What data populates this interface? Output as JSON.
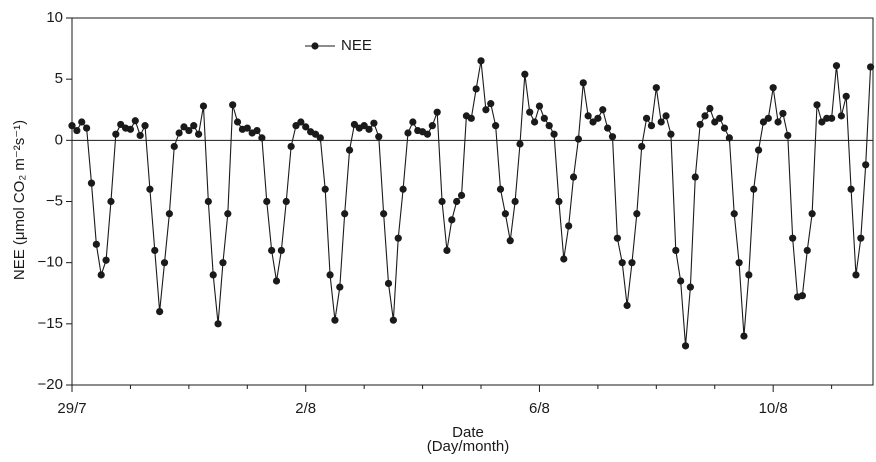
{
  "chart_data": {
    "type": "line",
    "x_label": "Date",
    "x_sublabel": "(Day/month)",
    "y_label": "NEE (μmol CO₂ m⁻²s⁻¹)",
    "x": [
      0,
      2,
      4,
      6,
      8,
      10,
      12,
      14,
      16,
      18,
      20,
      22,
      24,
      26,
      28,
      30,
      32,
      34,
      36,
      38,
      40,
      42,
      44,
      46,
      48,
      50,
      52,
      54,
      56,
      58,
      60,
      62,
      64,
      66,
      68,
      70,
      72,
      74,
      76,
      78,
      80,
      82,
      84,
      86,
      88,
      90,
      92,
      94,
      96,
      98,
      100,
      102,
      104,
      106,
      108,
      110,
      112,
      114,
      116,
      118,
      120,
      122,
      124,
      126,
      128,
      130,
      132,
      134,
      136,
      138,
      140,
      142,
      144,
      146,
      148,
      150,
      152,
      154,
      156,
      158,
      160,
      162,
      164,
      166,
      168,
      170,
      172,
      174,
      176,
      178,
      180,
      182,
      184,
      186,
      188,
      190,
      192,
      194,
      196,
      198,
      200,
      202,
      204,
      206,
      208,
      210,
      212,
      214,
      216,
      218,
      220,
      222,
      224,
      226,
      228,
      230,
      232,
      234,
      236,
      238,
      240,
      242,
      244,
      246,
      248,
      250,
      252,
      254,
      256,
      258,
      260,
      262,
      264,
      266,
      268,
      270,
      272,
      274,
      276,
      278,
      280,
      282,
      284,
      286,
      288,
      290,
      292,
      294,
      296,
      298,
      300,
      302,
      304,
      306,
      308,
      310,
      312,
      314,
      316,
      318,
      320,
      322,
      324,
      326,
      328
    ],
    "series": [
      {
        "name": "NEE",
        "color": "#1a1a1a",
        "values": [
          1.2,
          0.8,
          1.5,
          1.0,
          -3.5,
          -8.5,
          -11,
          -9.8,
          -5,
          0.5,
          1.3,
          1.0,
          0.9,
          1.6,
          0.4,
          1.2,
          -4,
          -9,
          -14,
          -10,
          -6,
          -0.5,
          0.6,
          1.1,
          0.8,
          1.2,
          0.5,
          2.8,
          -5,
          -11,
          -15,
          -10,
          -6,
          2.9,
          1.5,
          0.9,
          1.0,
          0.6,
          0.8,
          0.2,
          -5,
          -9,
          -11.5,
          -9,
          -5,
          -0.5,
          1.2,
          1.5,
          1.1,
          0.7,
          0.5,
          0.2,
          -4,
          -11,
          -14.7,
          -12,
          -6,
          -0.8,
          1.3,
          1.0,
          1.2,
          0.9,
          1.4,
          0.3,
          -6,
          -11.7,
          -14.7,
          -8,
          -4,
          0.6,
          1.5,
          0.8,
          0.7,
          0.5,
          1.2,
          2.3,
          -5,
          -9,
          -6.5,
          -5,
          -4.5,
          2.0,
          1.8,
          4.2,
          6.5,
          2.5,
          3.0,
          1.2,
          -4,
          -6,
          -8.2,
          -5,
          -0.3,
          5.4,
          2.3,
          1.5,
          2.8,
          1.8,
          1.2,
          0.5,
          -5,
          -9.7,
          -7,
          -3,
          0.1,
          4.7,
          2.0,
          1.5,
          1.8,
          2.5,
          1.0,
          0.3,
          -8,
          -10,
          -13.5,
          -10,
          -6,
          -0.5,
          1.8,
          1.2,
          4.3,
          1.5,
          2.0,
          0.5,
          -9,
          -11.5,
          -16.8,
          -12,
          -3,
          1.3,
          2.0,
          2.6,
          1.5,
          1.8,
          1.0,
          0.2,
          -6,
          -10,
          -16,
          -11,
          -4,
          -0.8,
          1.5,
          1.8,
          4.3,
          1.5,
          2.2,
          0.4,
          -8,
          -12.8,
          -12.7,
          -9,
          -6,
          2.9,
          1.5,
          1.8,
          1.8,
          6.1,
          2.0,
          3.6,
          -4,
          -11,
          -8,
          -2,
          6.0
        ]
      }
    ],
    "xlim": [
      0,
      329
    ],
    "xticks": [
      {
        "value": 0,
        "label": "29/7"
      },
      {
        "value": 96,
        "label": "2/8"
      },
      {
        "value": 192,
        "label": "6/8"
      },
      {
        "value": 288,
        "label": "10/8"
      }
    ],
    "x_minor_ticks": [
      24,
      48,
      72,
      120,
      144,
      168,
      216,
      240,
      264,
      312
    ],
    "ylim": [
      -20,
      10
    ],
    "yticks": [
      {
        "value": -20,
        "label": "−20"
      },
      {
        "value": -15,
        "label": "−15"
      },
      {
        "value": -10,
        "label": "−10"
      },
      {
        "value": -5,
        "label": "−5"
      },
      0,
      5,
      10
    ],
    "zero_line": true,
    "legend": "top-left"
  }
}
